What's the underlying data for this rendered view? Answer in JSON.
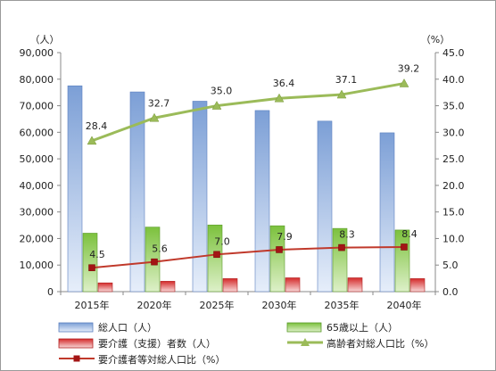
{
  "chart_data": {
    "type": "bar",
    "title": "",
    "categories": [
      "2015年",
      "2020年",
      "2025年",
      "2030年",
      "2035年",
      "2040年"
    ],
    "y_left": {
      "unit_label": "（人）",
      "range": [
        0,
        90000
      ],
      "step": 10000,
      "tick_labels": [
        "0",
        "10,000",
        "20,000",
        "30,000",
        "40,000",
        "50,000",
        "60,000",
        "70,000",
        "80,000",
        "90,000"
      ]
    },
    "y_right": {
      "unit_label": "（%）",
      "range": [
        0,
        45
      ],
      "step": 5,
      "tick_labels": [
        "0.0",
        "5.0",
        "10.0",
        "15.0",
        "20.0",
        "25.0",
        "30.0",
        "35.0",
        "40.0",
        "45.0"
      ]
    },
    "series": [
      {
        "name": "総人口（人）",
        "kind": "bar",
        "axis": "left",
        "color": "#8eaadb",
        "values": [
          77500,
          75200,
          71700,
          68200,
          64200,
          59800
        ]
      },
      {
        "name": "65歳以上（人）",
        "kind": "bar",
        "axis": "left",
        "color": "#92d050",
        "values": [
          22000,
          24300,
          25100,
          24800,
          23800,
          23200
        ]
      },
      {
        "name": "要介護（支援）者数（人）",
        "kind": "bar",
        "axis": "left",
        "color": "#e03c3c",
        "values": [
          3300,
          3900,
          4900,
          5200,
          5200,
          4900
        ]
      },
      {
        "name": "高齢者対総人口比（%）",
        "kind": "line",
        "axis": "right",
        "color": "#9bbb59",
        "values": [
          28.4,
          32.7,
          35.0,
          36.4,
          37.1,
          39.2
        ],
        "labels": [
          "28.4",
          "32.7",
          "35.0",
          "36.4",
          "37.1",
          "39.2"
        ]
      },
      {
        "name": "要介護者等対総人口比（%）",
        "kind": "line",
        "axis": "right",
        "color": "#c0392b",
        "values": [
          4.5,
          5.6,
          7.0,
          7.9,
          8.3,
          8.4
        ],
        "labels": [
          "4.5",
          "5.6",
          "7.0",
          "7.9",
          "8.3",
          "8.4"
        ]
      }
    ],
    "grid": false,
    "legend_position": "bottom"
  }
}
